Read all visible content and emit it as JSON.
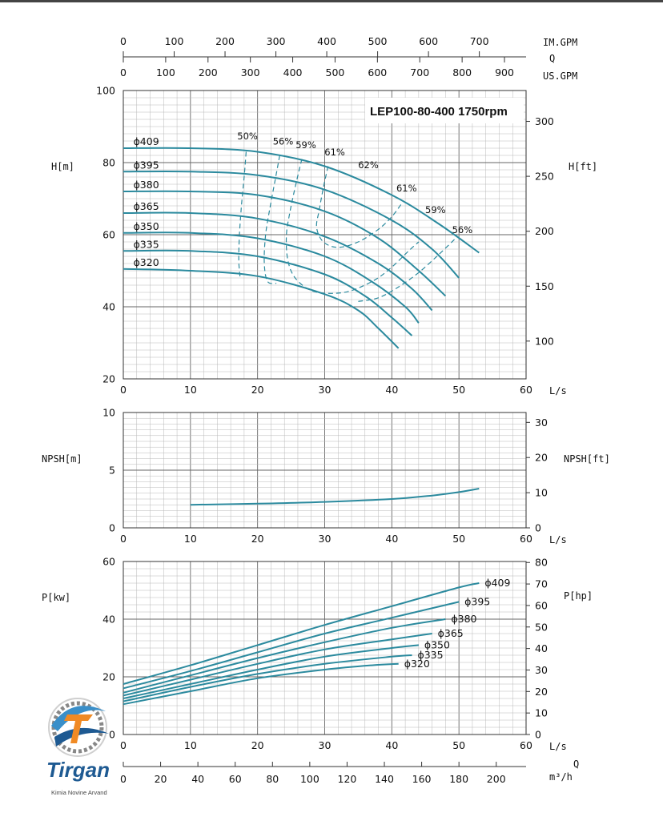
{
  "chart_data": [
    {
      "type": "line",
      "title": "LEP100-80-400 1750rpm",
      "xlabel": "L/s",
      "ylabel": "H[m]",
      "ylabel_right": "H[ft]",
      "xlim": [
        0,
        60
      ],
      "ylim": [
        20,
        100
      ],
      "x_ticks": [
        "0",
        "10",
        "20",
        "30",
        "40",
        "50",
        "60"
      ],
      "y_ticks": [
        "20",
        "40",
        "60",
        "80",
        "100"
      ],
      "y2_ticks": [
        "100",
        "150",
        "200",
        "250",
        "300"
      ],
      "grid": true,
      "series": [
        {
          "name": "ϕ409",
          "points": [
            [
              0,
              84.0
            ],
            [
              10,
              84.0
            ],
            [
              20,
              83.0
            ],
            [
              30,
              79.0
            ],
            [
              40,
              71.0
            ],
            [
              47,
              63.0
            ],
            [
              53,
              55.0
            ]
          ]
        },
        {
          "name": "ϕ395",
          "points": [
            [
              0,
              77.5
            ],
            [
              10,
              77.5
            ],
            [
              20,
              76.5
            ],
            [
              30,
              72.5
            ],
            [
              40,
              64.0
            ],
            [
              46,
              56.0
            ],
            [
              50,
              48.0
            ]
          ]
        },
        {
          "name": "ϕ380",
          "points": [
            [
              0,
              72.0
            ],
            [
              10,
              72.0
            ],
            [
              20,
              71.0
            ],
            [
              30,
              66.5
            ],
            [
              38,
              59.0
            ],
            [
              44,
              50.0
            ],
            [
              48,
              43.0
            ]
          ]
        },
        {
          "name": "ϕ365",
          "points": [
            [
              0,
              66.0
            ],
            [
              10,
              66.0
            ],
            [
              20,
              64.5
            ],
            [
              30,
              59.5
            ],
            [
              38,
              52.0
            ],
            [
              43,
              45.0
            ],
            [
              46,
              39.0
            ]
          ]
        },
        {
          "name": "ϕ350",
          "points": [
            [
              0,
              60.5
            ],
            [
              10,
              60.5
            ],
            [
              20,
              59.0
            ],
            [
              30,
              54.0
            ],
            [
              37,
              47.0
            ],
            [
              42,
              40.0
            ],
            [
              44,
              35.5
            ]
          ]
        },
        {
          "name": "ϕ335",
          "points": [
            [
              0,
              55.5
            ],
            [
              10,
              55.5
            ],
            [
              20,
              54.0
            ],
            [
              30,
              49.0
            ],
            [
              36,
              43.0
            ],
            [
              40,
              37.0
            ],
            [
              43,
              32.0
            ]
          ]
        },
        {
          "name": "ϕ320",
          "points": [
            [
              0,
              50.5
            ],
            [
              10,
              50.0
            ],
            [
              20,
              48.5
            ],
            [
              30,
              43.5
            ],
            [
              35,
              39.0
            ],
            [
              38,
              34.0
            ],
            [
              41,
              28.5
            ]
          ]
        }
      ],
      "efficiency_labels": [
        {
          "label": "50%",
          "x": 18.5,
          "y": 86.5
        },
        {
          "label": "56%",
          "x": 23.8,
          "y": 85.0
        },
        {
          "label": "59%",
          "x": 27.2,
          "y": 84.0
        },
        {
          "label": "61%",
          "x": 31.5,
          "y": 82.0
        },
        {
          "label": "62%",
          "x": 36.5,
          "y": 78.5
        },
        {
          "label": "61%",
          "x": 42.2,
          "y": 72.0
        },
        {
          "label": "59%",
          "x": 46.5,
          "y": 66.0
        },
        {
          "label": "56%",
          "x": 50.5,
          "y": 60.5
        }
      ],
      "efficiency_contours": [
        {
          "label": "50%",
          "points": [
            [
              18.3,
              83.0
            ],
            [
              18.0,
              76.0
            ],
            [
              17.6,
              68.0
            ],
            [
              17.3,
              60.0
            ],
            [
              17.2,
              53.0
            ],
            [
              17.4,
              48.0
            ]
          ]
        },
        {
          "label": "56%",
          "points": [
            [
              23.3,
              82.0
            ],
            [
              22.6,
              75.0
            ],
            [
              21.9,
              68.0
            ],
            [
              21.2,
              60.0
            ],
            [
              21.0,
              52.0
            ],
            [
              21.5,
              47.0
            ],
            [
              22.8,
              46.5
            ]
          ]
        },
        {
          "label": "59%",
          "points": [
            [
              26.6,
              81.0
            ],
            [
              25.7,
              74.0
            ],
            [
              24.9,
              67.0
            ],
            [
              24.3,
              60.0
            ],
            [
              24.5,
              53.0
            ],
            [
              25.6,
              48.0
            ],
            [
              28.0,
              44.5
            ],
            [
              31.0,
              43.7
            ],
            [
              34.0,
              44.5
            ],
            [
              37.5,
              47.5
            ],
            [
              40.0,
              51.0
            ],
            [
              42.5,
              55.5
            ],
            [
              44.0,
              58.0
            ]
          ]
        },
        {
          "label": "61%",
          "points": [
            [
              30.5,
              79.0
            ],
            [
              29.8,
              73.0
            ],
            [
              29.2,
              67.0
            ],
            [
              28.8,
              62.0
            ],
            [
              29.8,
              58.0
            ],
            [
              32.0,
              56.5
            ],
            [
              35.0,
              58.0
            ],
            [
              38.0,
              61.5
            ],
            [
              40.0,
              65.0
            ],
            [
              41.6,
              69.0
            ]
          ]
        },
        {
          "label": "56%",
          "points": [
            [
              35.0,
              41.5
            ],
            [
              38.0,
              42.5
            ],
            [
              41.0,
              45.5
            ],
            [
              44.0,
              49.5
            ],
            [
              47.0,
              54.5
            ],
            [
              49.5,
              59.0
            ]
          ]
        }
      ]
    },
    {
      "type": "line",
      "xlabel": "L/s",
      "ylabel": "NPSH[m]",
      "ylabel_right": "NPSH[ft]",
      "xlim": [
        0,
        60
      ],
      "ylim": [
        0,
        10
      ],
      "x_ticks": [
        "0",
        "10",
        "20",
        "30",
        "40",
        "50",
        "60"
      ],
      "y_ticks": [
        "0",
        "5",
        "10"
      ],
      "y2_ticks": [
        "0",
        "10",
        "20",
        "30"
      ],
      "grid": true,
      "series": [
        {
          "points": [
            [
              10,
              2.0
            ],
            [
              20,
              2.1
            ],
            [
              30,
              2.25
            ],
            [
              40,
              2.5
            ],
            [
              46,
              2.8
            ],
            [
              50,
              3.1
            ],
            [
              53,
              3.4
            ]
          ]
        }
      ]
    },
    {
      "type": "line",
      "xlabel": "L/s",
      "ylabel": "P[kw]",
      "ylabel_right": "P[hp]",
      "xlim": [
        0,
        60
      ],
      "ylim": [
        0,
        60
      ],
      "x_ticks": [
        "0",
        "10",
        "20",
        "30",
        "40",
        "50",
        "60"
      ],
      "y_ticks": [
        "0",
        "20",
        "40",
        "60"
      ],
      "y2_ticks": [
        "0",
        "10",
        "20",
        "30",
        "40",
        "50",
        "60",
        "70",
        "80"
      ],
      "grid": true,
      "series": [
        {
          "name": "ϕ409",
          "points": [
            [
              0,
              17.5
            ],
            [
              10,
              24.0
            ],
            [
              20,
              31.0
            ],
            [
              30,
              38.0
            ],
            [
              40,
              44.5
            ],
            [
              50,
              51.0
            ],
            [
              53,
              52.5
            ]
          ]
        },
        {
          "name": "ϕ395",
          "points": [
            [
              0,
              16.0
            ],
            [
              10,
              22.0
            ],
            [
              20,
              28.5
            ],
            [
              30,
              35.0
            ],
            [
              40,
              40.5
            ],
            [
              50,
              46.0
            ]
          ]
        },
        {
          "name": "ϕ380",
          "points": [
            [
              0,
              14.5
            ],
            [
              10,
              20.5
            ],
            [
              20,
              26.5
            ],
            [
              30,
              32.0
            ],
            [
              40,
              37.0
            ],
            [
              48,
              40.0
            ]
          ]
        },
        {
          "name": "ϕ365",
          "points": [
            [
              0,
              13.5
            ],
            [
              10,
              19.0
            ],
            [
              20,
              24.5
            ],
            [
              30,
              29.5
            ],
            [
              40,
              33.0
            ],
            [
              46,
              35.0
            ]
          ]
        },
        {
          "name": "ϕ350",
          "points": [
            [
              0,
              12.5
            ],
            [
              10,
              17.5
            ],
            [
              20,
              22.5
            ],
            [
              30,
              27.0
            ],
            [
              40,
              30.0
            ],
            [
              44,
              31.0
            ]
          ]
        },
        {
          "name": "ϕ335",
          "points": [
            [
              0,
              11.5
            ],
            [
              10,
              16.5
            ],
            [
              20,
              21.0
            ],
            [
              30,
              24.5
            ],
            [
              40,
              27.0
            ],
            [
              43,
              27.5
            ]
          ]
        },
        {
          "name": "ϕ320",
          "points": [
            [
              0,
              10.5
            ],
            [
              10,
              15.0
            ],
            [
              20,
              19.5
            ],
            [
              30,
              22.5
            ],
            [
              37,
              24.0
            ],
            [
              41,
              24.5
            ]
          ]
        }
      ]
    }
  ],
  "top_axes": {
    "im_gpm": {
      "label": "IM.GPM",
      "ticks": [
        0,
        100,
        200,
        300,
        400,
        500,
        600,
        700
      ]
    },
    "q_label": "Q",
    "us_gpm": {
      "label": "US.GPM",
      "ticks": [
        0,
        100,
        200,
        300,
        400,
        500,
        600,
        700,
        800,
        900
      ]
    }
  },
  "bottom_axis": {
    "label": "m³/h",
    "q_label": "Q",
    "ticks": [
      0,
      20,
      40,
      60,
      80,
      100,
      120,
      140,
      160,
      180,
      200
    ]
  },
  "logo": {
    "brand": "Tirgan",
    "subtitle": "Kimia Novine Arvand"
  },
  "colors": {
    "curve": "#2b8a9e",
    "grid": "#b8b8b8",
    "axis": "#333333"
  }
}
